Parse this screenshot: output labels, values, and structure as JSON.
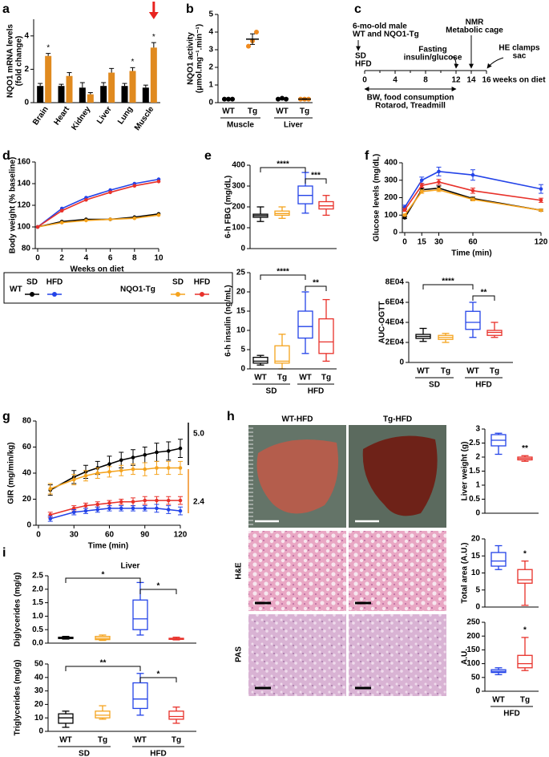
{
  "chart_data": [
    {
      "type": "bar",
      "panel_label": "a",
      "ylabel": [
        "NQO1 mRNA levels",
        "(fold change)"
      ],
      "categories": [
        "Brain",
        "Heart",
        "Kidney",
        "Liver",
        "Lung",
        "Muscle"
      ],
      "series": [
        {
          "color": "#000000",
          "values": [
            1.0,
            1.0,
            0.9,
            1.0,
            1.0,
            0.9
          ],
          "errors": [
            0.15,
            0.1,
            0.3,
            0.2,
            0.15,
            0.15
          ]
        },
        {
          "color": "#e08a1f",
          "values": [
            2.8,
            1.6,
            0.5,
            1.8,
            1.9,
            3.3
          ],
          "errors": [
            0.15,
            0.2,
            0.1,
            0.25,
            0.2,
            0.3
          ]
        }
      ],
      "ylim": [
        0,
        5
      ],
      "yticks": [
        0,
        2,
        4
      ],
      "annotations": [
        "*",
        "*",
        "*"
      ],
      "arrow_color": "#e8231f"
    },
    {
      "type": "dot",
      "panel_label": "b",
      "ylabel": [
        "NQO1 activity",
        "(μmol.mg⁻¹.min⁻¹)"
      ],
      "categories": [
        "WT",
        "Tg",
        "WT",
        "Tg"
      ],
      "groups": [
        "Muscle",
        "Liver"
      ],
      "colors": [
        "#000000",
        "#f08a1e",
        "#000000",
        "#f08a1e"
      ],
      "values": [
        0.2,
        3.6,
        0.22,
        0.2
      ],
      "errors": [
        0.02,
        0.3,
        0.03,
        0.02
      ],
      "points": [
        [
          0.2,
          0.2,
          0.2
        ],
        [
          3.2,
          3.5,
          4.0
        ],
        [
          0.2,
          0.25,
          0.2
        ],
        [
          0.2,
          0.2,
          0.2
        ]
      ],
      "ylim": [
        0,
        5
      ],
      "yticks": [
        0,
        1,
        2,
        3,
        4,
        5
      ]
    },
    {
      "type": "timeline",
      "panel_label": "c",
      "xlim": [
        0,
        16
      ],
      "xticks": [
        0,
        4,
        8,
        12,
        14,
        16
      ],
      "xlabel": "weeks on diet",
      "notes": [
        [
          "6-mo-old male",
          "WT and NQO1-Tg"
        ],
        [
          "SD",
          "HFD"
        ],
        [
          "Fasting",
          "insulin/glucose"
        ],
        [
          "NMR",
          "Metabolic cage"
        ],
        [
          "HE clamps",
          "sac"
        ],
        [
          "BW, food consumption",
          "Rotarod, Treadmill"
        ]
      ]
    },
    {
      "type": "line",
      "panel_label": "d",
      "ylabel": "Body weight (% baseline)",
      "xlabel": "Weeks on diet",
      "x": [
        0,
        2,
        4,
        6,
        8,
        10
      ],
      "xlim": [
        0,
        10
      ],
      "xticks": [
        0,
        2,
        4,
        6,
        8,
        10
      ],
      "ylim": [
        80,
        160
      ],
      "yticks": [
        80,
        100,
        120,
        140,
        160
      ],
      "series": [
        {
          "color": "#000000",
          "values": [
            100,
            105,
            107,
            107,
            109,
            112
          ]
        },
        {
          "color": "#f5a31d",
          "values": [
            100,
            104,
            106,
            107,
            108,
            111
          ]
        },
        {
          "color": "#2343e8",
          "values": [
            100,
            117,
            127,
            134,
            140,
            144
          ]
        },
        {
          "color": "#e8312a",
          "values": [
            100,
            115,
            125,
            132,
            138,
            142
          ]
        }
      ]
    },
    {
      "type": "legend",
      "groups": [
        {
          "name": "WT",
          "series": [
            {
              "name": "SD",
              "color": "#000000"
            },
            {
              "name": "HFD",
              "color": "#2343e8"
            }
          ]
        },
        {
          "name": "NQO1-Tg",
          "series": [
            {
              "name": "SD",
              "color": "#f5a31d"
            },
            {
              "name": "HFD",
              "color": "#e8312a"
            }
          ]
        }
      ]
    },
    {
      "type": "box",
      "panel_label": "e",
      "ylabel": "6-h FBG (mg/dL)",
      "colors": [
        "#000000",
        "#f5a31d",
        "#2343e8",
        "#e8312a"
      ],
      "stats": [
        [
          130,
          150,
          158,
          165,
          200
        ],
        [
          145,
          160,
          168,
          180,
          200
        ],
        [
          170,
          215,
          255,
          300,
          365
        ],
        [
          160,
          190,
          205,
          225,
          255
        ]
      ],
      "ylim": [
        0,
        400
      ],
      "yticks": [
        0,
        100,
        200,
        300,
        400
      ],
      "annotations": [
        "****",
        "***"
      ]
    },
    {
      "type": "box",
      "ylabel": "6-h insulin (ng/mL)",
      "categories": [
        "WT",
        "Tg",
        "WT",
        "Tg"
      ],
      "groups": [
        "SD",
        "HFD"
      ],
      "colors": [
        "#000000",
        "#f5a31d",
        "#2343e8",
        "#e8312a"
      ],
      "stats": [
        [
          1,
          1.5,
          2,
          3,
          3.5
        ],
        [
          0,
          1.5,
          2,
          6,
          9
        ],
        [
          4,
          8,
          11,
          15,
          20
        ],
        [
          2,
          4,
          7,
          13,
          18
        ]
      ],
      "ylim": [
        0,
        25
      ],
      "yticks": [
        0,
        5,
        10,
        15,
        20,
        25
      ],
      "annotations": [
        "****",
        "**"
      ]
    },
    {
      "type": "line",
      "panel_label": "f",
      "ylabel": "Glucose levels (mg/dL)",
      "xlabel": "Time (min)",
      "x": [
        0,
        15,
        30,
        60,
        120
      ],
      "xlim": [
        0,
        120
      ],
      "xticks": [
        0,
        15,
        30,
        60,
        120
      ],
      "ylim": [
        0,
        400
      ],
      "yticks": [
        0,
        100,
        200,
        300,
        400
      ],
      "series": [
        {
          "color": "#000000",
          "values": [
            85,
            245,
            255,
            195,
            128
          ],
          "errors": [
            5,
            10,
            12,
            8,
            6
          ]
        },
        {
          "color": "#f5a31d",
          "values": [
            100,
            235,
            245,
            190,
            128
          ],
          "errors": [
            5,
            10,
            10,
            8,
            5
          ]
        },
        {
          "color": "#2343e8",
          "values": [
            145,
            300,
            350,
            330,
            250
          ],
          "errors": [
            12,
            18,
            25,
            30,
            25
          ]
        },
        {
          "color": "#e8312a",
          "values": [
            130,
            270,
            290,
            240,
            185
          ],
          "errors": [
            8,
            12,
            15,
            15,
            12
          ]
        }
      ]
    },
    {
      "type": "box",
      "ylabel": "AUC-OGTT",
      "categories": [
        "WT",
        "Tg",
        "WT",
        "Tg"
      ],
      "groups": [
        "SD",
        "HFD"
      ],
      "colors": [
        "#000000",
        "#f5a31d",
        "#2343e8",
        "#e8312a"
      ],
      "stats": [
        [
          21000,
          24000,
          26000,
          28000,
          34000
        ],
        [
          20000,
          23000,
          25000,
          27000,
          29000
        ],
        [
          25000,
          33000,
          40000,
          51000,
          60000
        ],
        [
          25000,
          27000,
          30000,
          32000,
          40000
        ]
      ],
      "ylim": [
        0,
        80000
      ],
      "yticks": [
        0,
        {
          "value": 20000,
          "label": "2E04"
        },
        {
          "value": 40000,
          "label": "4E04"
        },
        {
          "value": 60000,
          "label": "6E04"
        },
        {
          "value": 80000,
          "label": "8E04"
        }
      ],
      "annotations": [
        "****",
        "**"
      ]
    },
    {
      "type": "line",
      "panel_label": "g",
      "ylabel": "GIR (mg/min/kg)",
      "xlabel": "Time (min)",
      "x": [
        10,
        30,
        40,
        50,
        60,
        70,
        80,
        90,
        100,
        110,
        120
      ],
      "xlim": [
        0,
        120
      ],
      "xticks": [
        0,
        30,
        60,
        90,
        120
      ],
      "ylim": [
        0,
        80
      ],
      "yticks": [
        0,
        20,
        40,
        60,
        80
      ],
      "series": [
        {
          "color": "#000000",
          "values": [
            27,
            37,
            41,
            44,
            47,
            50,
            52,
            54,
            56,
            57,
            59
          ],
          "errors": [
            4,
            5,
            5,
            5,
            6,
            6,
            6,
            6,
            7,
            7,
            7
          ]
        },
        {
          "color": "#f5a31d",
          "values": [
            28,
            35,
            38,
            40,
            41,
            42,
            43,
            43,
            44,
            44,
            44
          ],
          "errors": [
            4,
            4,
            4,
            4,
            4,
            4,
            4,
            5,
            5,
            5,
            5
          ]
        },
        {
          "color": "#e8312a",
          "values": [
            8,
            13,
            15,
            16,
            17,
            18,
            18,
            19,
            19,
            19,
            19
          ],
          "errors": [
            2,
            2,
            2,
            2,
            2,
            2,
            3,
            3,
            3,
            3,
            3
          ]
        },
        {
          "color": "#2343e8",
          "values": [
            5,
            10,
            11,
            12,
            13,
            13,
            13,
            13,
            13,
            12,
            11
          ],
          "errors": [
            2,
            2,
            2,
            2,
            2,
            2,
            2,
            2,
            3,
            3,
            3
          ]
        }
      ],
      "side_notes": [
        {
          "text": "5.0",
          "color": "#000000"
        },
        {
          "text": "2.4",
          "color": "#f08a1e"
        }
      ]
    },
    {
      "type": "image-grid",
      "panel_label": "h",
      "columns": [
        "WT-HFD",
        "Tg-HFD"
      ],
      "rows": [
        "H&E",
        "PAS"
      ]
    },
    {
      "type": "box",
      "ylabel": "Liver weight (g)",
      "colors": [
        "#2343e8",
        "#e8312a"
      ],
      "stats": [
        [
          2.1,
          2.4,
          2.6,
          2.8,
          2.85
        ],
        [
          1.85,
          1.9,
          1.95,
          2.0,
          2.05
        ]
      ],
      "ylim": [
        0,
        3
      ],
      "yticks": [
        0,
        0.5,
        1,
        1.5,
        2,
        2.5,
        3
      ],
      "annotations": [
        "**"
      ]
    },
    {
      "type": "box",
      "ylabel": "Total area (A.U.)",
      "colors": [
        "#2343e8",
        "#e8312a"
      ],
      "stats": [
        [
          11,
          12,
          13.5,
          16,
          18
        ],
        [
          0.5,
          7,
          8,
          11,
          13.5
        ]
      ],
      "ylim": [
        0,
        20
      ],
      "yticks": [
        0,
        5,
        10,
        15,
        20
      ],
      "annotations": [
        "*"
      ]
    },
    {
      "type": "box",
      "ylabel": "A.U.",
      "categories": [
        "WT",
        "Tg"
      ],
      "groups": [
        "HFD"
      ],
      "colors": [
        "#2343e8",
        "#e8312a"
      ],
      "stats": [
        [
          60,
          68,
          72,
          78,
          85
        ],
        [
          75,
          85,
          100,
          130,
          195
        ]
      ],
      "ylim": [
        0,
        250
      ],
      "yticks": [
        0,
        50,
        100,
        150,
        200,
        250
      ],
      "annotations": [
        "*"
      ]
    },
    {
      "type": "box",
      "panel_label": "i",
      "title": "Liver",
      "ylabel": "Diglycerides (mg/g)",
      "colors": [
        "#000000",
        "#f5a31d",
        "#2343e8",
        "#e8312a"
      ],
      "stats": [
        [
          0.15,
          0.17,
          0.2,
          0.22,
          0.25
        ],
        [
          0.1,
          0.13,
          0.18,
          0.25,
          0.3
        ],
        [
          0.3,
          0.5,
          0.9,
          1.6,
          2.25
        ],
        [
          0.12,
          0.14,
          0.16,
          0.18,
          0.22
        ]
      ],
      "ylim": [
        0,
        2.5
      ],
      "yticks": [
        {
          "value": 0,
          "label": "0.0"
        },
        0.5,
        {
          "value": 1,
          "label": "1.0"
        },
        1.5,
        {
          "value": 2,
          "label": "2.0"
        },
        2.5
      ],
      "annotations": [
        "*",
        "*"
      ]
    },
    {
      "type": "box",
      "ylabel": "Triglycerides (mg/g)",
      "categories": [
        "WT",
        "Tg",
        "WT",
        "Tg"
      ],
      "groups": [
        "SD",
        "HFD"
      ],
      "colors": [
        "#000000",
        "#f5a31d",
        "#2343e8",
        "#e8312a"
      ],
      "stats": [
        [
          3,
          6,
          10,
          13,
          15
        ],
        [
          9,
          10,
          12,
          15,
          19
        ],
        [
          12,
          17,
          24,
          36,
          43
        ],
        [
          6,
          9,
          11,
          15,
          18
        ]
      ],
      "ylim": [
        0,
        50
      ],
      "yticks": [
        0,
        10,
        20,
        30,
        40,
        50
      ],
      "annotations": [
        "**",
        "*"
      ]
    }
  ]
}
